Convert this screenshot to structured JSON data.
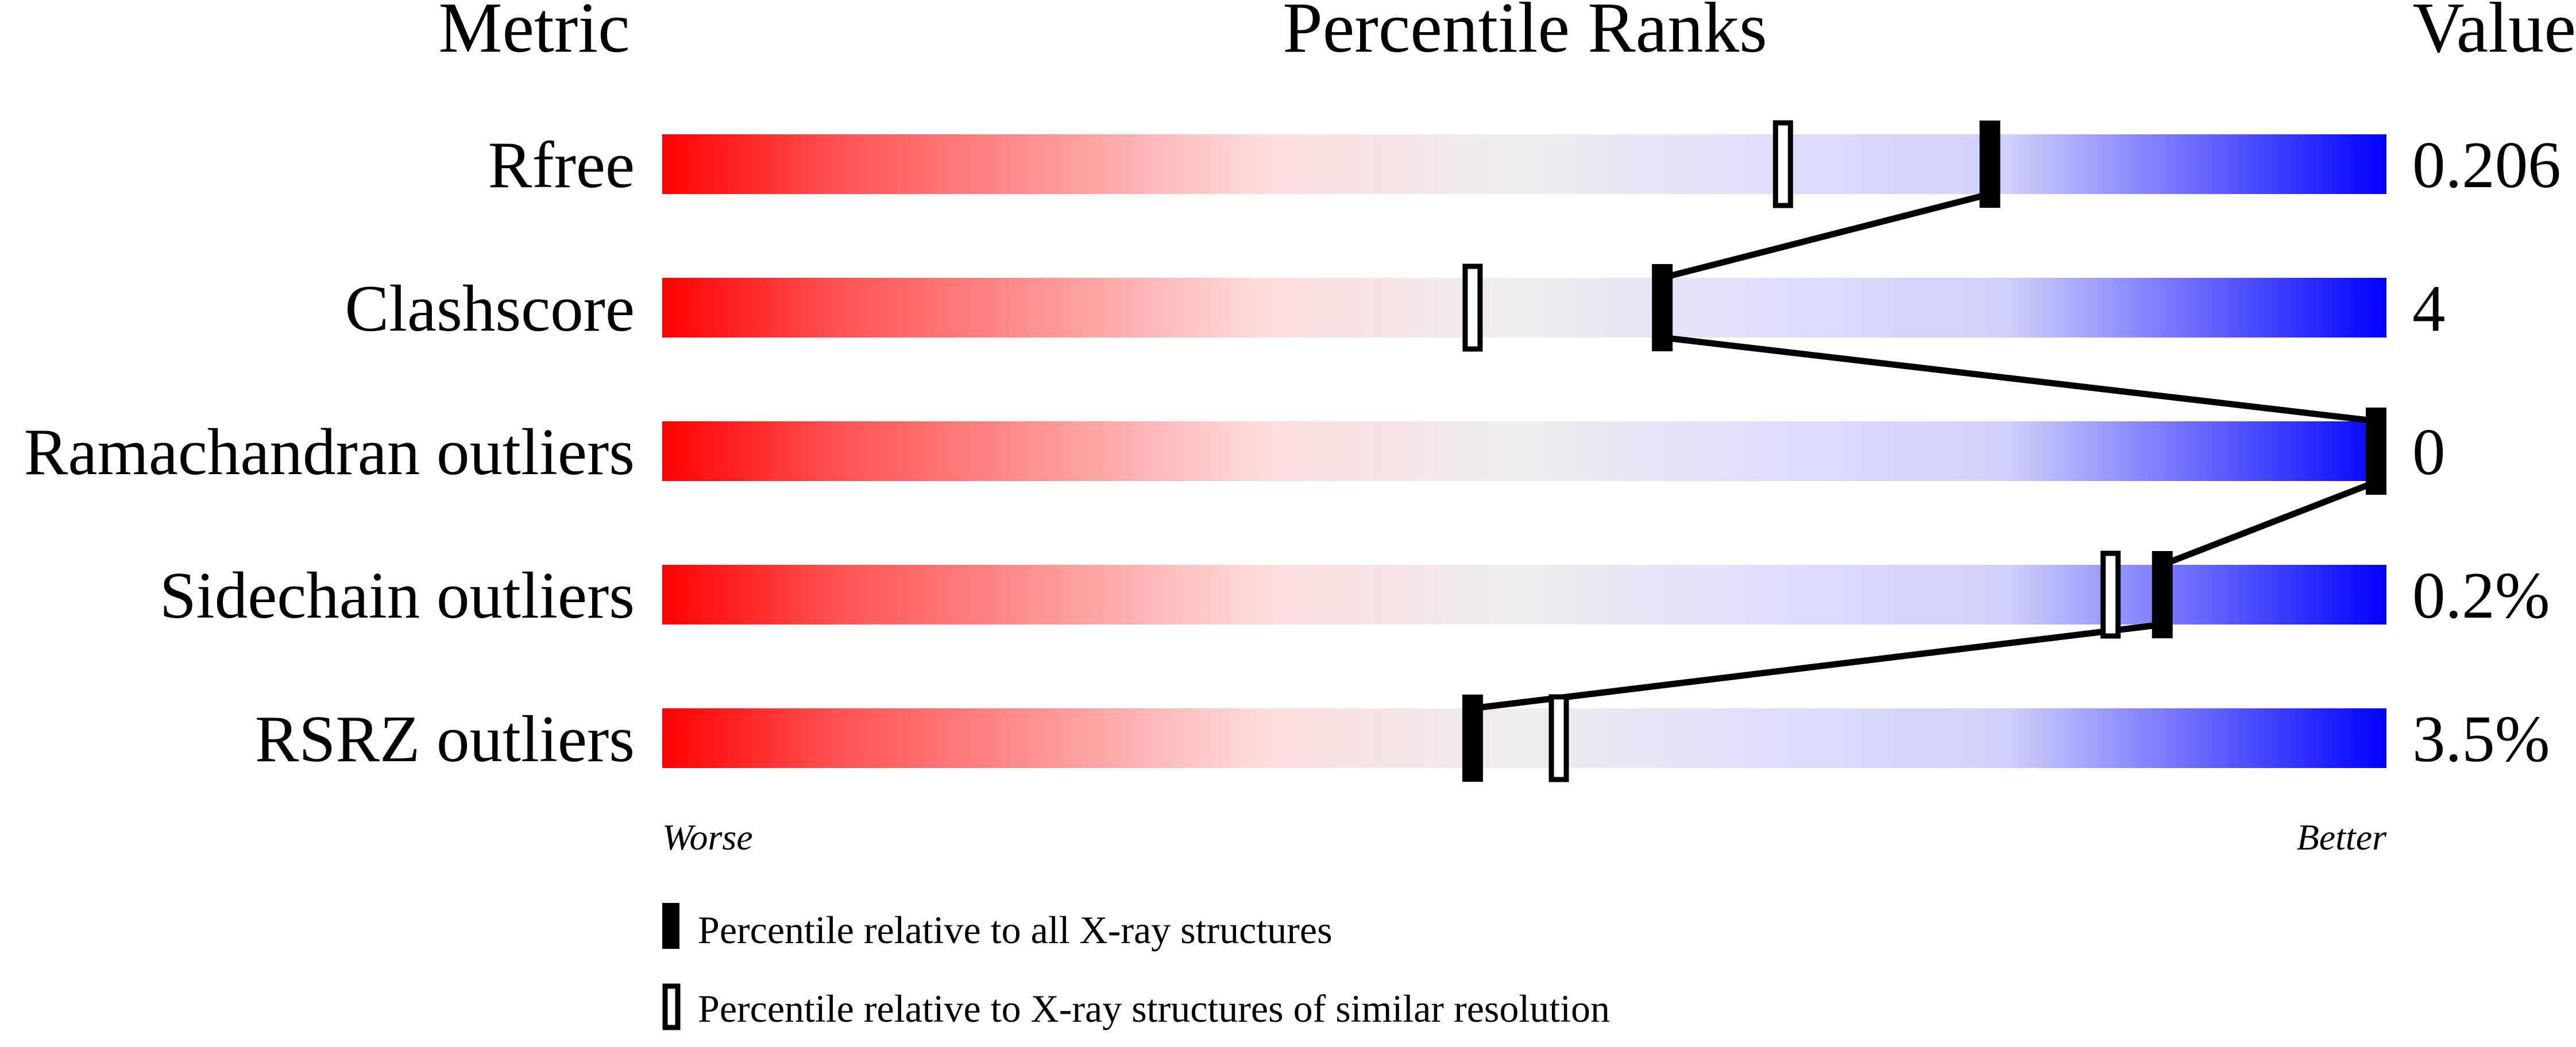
{
  "chart_data": {
    "type": "percentile-slider",
    "headers": {
      "metric": "Metric",
      "ranks": "Percentile Ranks",
      "value": "Value"
    },
    "axis": {
      "min": 0,
      "max": 100,
      "left_label": "Worse",
      "right_label": "Better"
    },
    "rows": [
      {
        "metric": "Rfree",
        "value": "0.206",
        "percentile_all": 77,
        "percentile_similar": 65
      },
      {
        "metric": "Clashscore",
        "value": "4",
        "percentile_all": 58,
        "percentile_similar": 47
      },
      {
        "metric": "Ramachandran outliers",
        "value": "0",
        "percentile_all": 100,
        "percentile_similar": 100
      },
      {
        "metric": "Sidechain outliers",
        "value": "0.2%",
        "percentile_all": 87,
        "percentile_similar": 84
      },
      {
        "metric": "RSRZ outliers",
        "value": "3.5%",
        "percentile_all": 47,
        "percentile_similar": 52
      }
    ],
    "legend": {
      "all": "Percentile relative to all X-ray structures",
      "similar": "Percentile relative to X-ray structures of similar resolution"
    },
    "colors": {
      "worse": "#ff0000",
      "middle": "#eeeeee",
      "better": "#0000ff"
    }
  }
}
